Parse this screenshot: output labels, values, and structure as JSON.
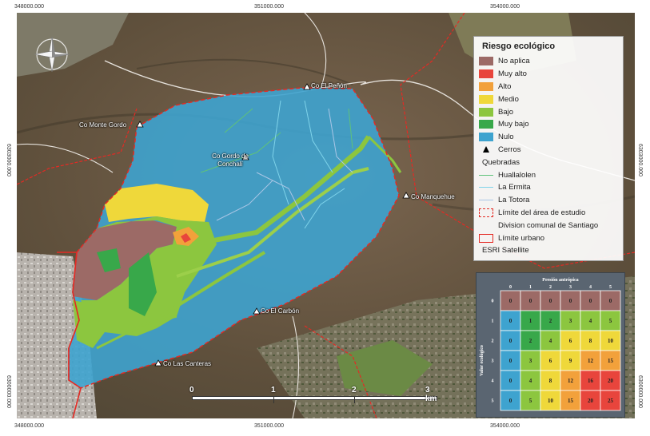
{
  "coords": {
    "top": [
      "348000.000",
      "351000.000",
      "354000.000"
    ],
    "bottom": [
      "348000.000",
      "351000.000",
      "354000.000"
    ],
    "left": [
      "6300000.000",
      "6303000.000"
    ],
    "right": [
      "6300000.000",
      "6303000.000"
    ]
  },
  "places": [
    {
      "name": "Co El Peñón"
    },
    {
      "name": "Co Monte Gordo"
    },
    {
      "name": "Co Gordo de Conchalí"
    },
    {
      "name": "Co Manquehue"
    },
    {
      "name": "Co El Carbón"
    },
    {
      "name": "Co Las Canteras"
    }
  ],
  "legend": {
    "title": "Riesgo ecológico",
    "classes": [
      {
        "label": "No aplica",
        "color": "#9c6a66"
      },
      {
        "label": "Muy alto",
        "color": "#e8453c"
      },
      {
        "label": "Alto",
        "color": "#f2a13b"
      },
      {
        "label": "Medio",
        "color": "#efd83a"
      },
      {
        "label": "Bajo",
        "color": "#8cc63f"
      },
      {
        "label": "Muy bajo",
        "color": "#38a84a"
      },
      {
        "label": "Nulo",
        "color": "#3ea3cf"
      }
    ],
    "cerros": "Cerros",
    "quebradas_title": "Quebradas",
    "quebradas": [
      {
        "label": "Huallalolen",
        "color": "#5fc27a"
      },
      {
        "label": "La Ermita",
        "color": "#7fd3ea"
      },
      {
        "label": "La Totora",
        "color": "#a9c6e6"
      }
    ],
    "limite_estudio": "Límite del área de estudio",
    "division": "Division comunal de Santiago",
    "limite_urbano": "Límite urbano",
    "base": "ESRI Satellite"
  },
  "matrix": {
    "col_title": "Presión antrópica",
    "row_title": "Valor ecológico",
    "cols": [
      "0",
      "1",
      "2",
      "3",
      "4",
      "5"
    ],
    "rows": [
      "0",
      "1",
      "2",
      "3",
      "4",
      "5"
    ],
    "values": [
      [
        0,
        0,
        0,
        0,
        0,
        0
      ],
      [
        0,
        1,
        2,
        3,
        4,
        5
      ],
      [
        0,
        2,
        4,
        6,
        8,
        10
      ],
      [
        0,
        3,
        6,
        9,
        12,
        15
      ],
      [
        0,
        4,
        8,
        12,
        16,
        20
      ],
      [
        0,
        5,
        10,
        15,
        20,
        25
      ]
    ]
  },
  "scale": {
    "ticks": [
      "0",
      "1",
      "2",
      "3 km"
    ]
  }
}
